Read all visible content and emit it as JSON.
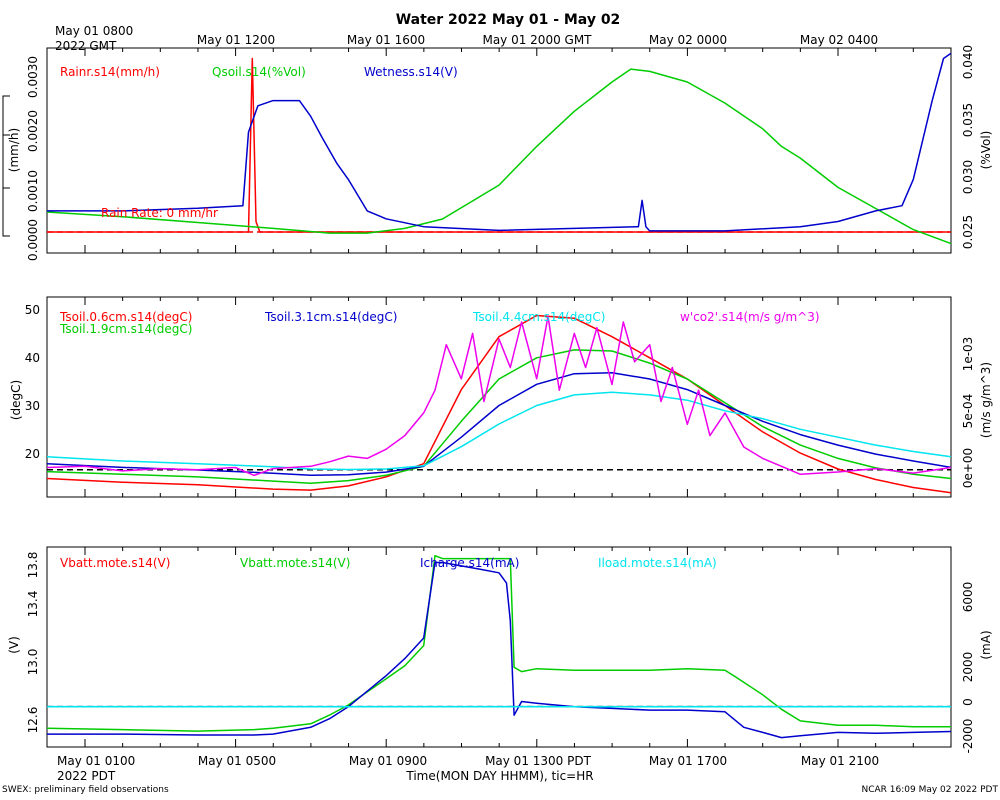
{
  "page": {
    "title": "Water 2022 May 01 - May 02",
    "top_axis": {
      "start_label_line1": "May 01 0800",
      "start_label_line2": "2022 GMT",
      "ticks": [
        "May 01 1200",
        "May 01 1600",
        "May 01 2000 GMT",
        "May 02 0000",
        "May 02 0400"
      ]
    },
    "bottom_axis": {
      "start_label_line1": "May 01 0100",
      "start_label_line2": "2022 PDT",
      "ticks": [
        "May 01 0500",
        "May 01 0900",
        "May 01 1300 PDT",
        "May 01 1700",
        "May 01 2100"
      ],
      "xlabel": "Time(MON DAY HHMM), tic=HR"
    },
    "footer_left": "SWEX: preliminary field observations",
    "footer_right": "NCAR 16:09 May 02 2022 PDT"
  },
  "chart_data": [
    {
      "type": "line",
      "panel": "water",
      "x_units": "hours since May 01 0000 PDT",
      "xlim": [
        0,
        24
      ],
      "left_axis": {
        "label": "(mm/h)",
        "ylim": [
          -0.0004,
          0.0035
        ],
        "ticks": [
          "0.0000",
          "0.0010",
          "0.0020",
          "0.0030"
        ]
      },
      "right_axis": {
        "label": "(%Vol)",
        "ylim": [
          0.0237,
          0.0412
        ],
        "ticks": [
          "0.025",
          "0.030",
          "0.035",
          "0.040"
        ]
      },
      "annotation": "Rain Rate: 0 mm/hr",
      "zero_line": {
        "value": 0,
        "color": "#ff0000"
      },
      "series": [
        {
          "name": "Rainr.s14(mm/h)",
          "color": "#ff0000",
          "axis": "left",
          "x": [
            0,
            5.35,
            5.45,
            5.55,
            5.65,
            24
          ],
          "y": [
            0,
            0,
            0.0033,
            0.0002,
            0,
            0
          ]
        },
        {
          "name": "Qsoil.s14(%Vol)",
          "color": "#00cc00",
          "axis": "right",
          "x": [
            0,
            2,
            4,
            6,
            7.5,
            8.5,
            9.5,
            10.5,
            12,
            13,
            14,
            15,
            15.5,
            16,
            17,
            18,
            19,
            19.5,
            20,
            21,
            22,
            23,
            24
          ],
          "y": [
            0.0272,
            0.0268,
            0.0263,
            0.0258,
            0.0254,
            0.0254,
            0.0258,
            0.0266,
            0.0295,
            0.0328,
            0.0358,
            0.0383,
            0.0394,
            0.0392,
            0.0383,
            0.0365,
            0.0343,
            0.0328,
            0.0318,
            0.0293,
            0.0275,
            0.0257,
            0.0245
          ]
        },
        {
          "name": "Wetness.s14(V)",
          "color": "#0000cc",
          "axis": "left",
          "x": [
            0,
            2,
            4,
            5.2,
            5.35,
            5.6,
            6,
            6.7,
            7,
            7.3,
            7.7,
            8,
            8.5,
            9,
            10,
            12,
            15.7,
            15.8,
            15.9,
            16,
            18,
            20,
            21,
            22,
            22.7,
            23,
            23.5,
            23.8,
            24
          ],
          "y": [
            0.0004,
            0.0004,
            0.00045,
            0.0005,
            0.0019,
            0.0024,
            0.0025,
            0.0025,
            0.0022,
            0.0018,
            0.0013,
            0.001,
            0.0004,
            0.00025,
            0.0001,
            3e-05,
            0.0001,
            0.0006,
            0.0001,
            2e-05,
            2e-05,
            0.0001,
            0.0002,
            0.0004,
            0.0005,
            0.001,
            0.0025,
            0.0033,
            0.0034
          ]
        }
      ]
    },
    {
      "type": "line",
      "panel": "soil temperature",
      "x_units": "hours since May 01 0000 PDT",
      "xlim": [
        0,
        24
      ],
      "left_axis": {
        "label": "(degC)",
        "ylim": [
          13.7,
          51.5
        ],
        "ticks": [
          "20",
          "30",
          "40",
          "50"
        ]
      },
      "right_axis": {
        "label": "(m/s g/m^3)",
        "ylim": [
          -0.00024,
          0.00152
        ],
        "ticks": [
          "0e+00",
          "5e-04",
          "1e-03"
        ]
      },
      "zero_line": {
        "value": 0,
        "axis": "right",
        "color": "#000000"
      },
      "series": [
        {
          "name": "Tsoil.0.6cm.s14(degC)",
          "color": "#ff0000",
          "axis": "left",
          "x": [
            0,
            2,
            4,
            6,
            7,
            8,
            9,
            10,
            11,
            12,
            13,
            14,
            15,
            16,
            17,
            18,
            19,
            20,
            21,
            22,
            23,
            24
          ],
          "y": [
            17.2,
            16.5,
            16,
            15.2,
            15,
            15.8,
            17.5,
            20,
            34,
            44,
            48,
            47.5,
            44,
            40,
            36,
            31,
            26,
            22,
            19,
            17,
            15.5,
            14.5
          ]
        },
        {
          "name": "Tsoil.1.9cm.s14(degC)",
          "color": "#00cc00",
          "axis": "left",
          "x": [
            0,
            2,
            4,
            6,
            7,
            8,
            9,
            10,
            11,
            12,
            13,
            14,
            15,
            16,
            17,
            18,
            19,
            20,
            21,
            22,
            23,
            24
          ],
          "y": [
            18.5,
            18,
            17.5,
            16.7,
            16.3,
            16.8,
            17.8,
            19.5,
            28,
            36,
            40,
            41.5,
            41.3,
            39,
            36,
            31.5,
            27,
            23.5,
            21,
            19.2,
            18,
            17.2
          ]
        },
        {
          "name": "Tsoil.3.1cm.s14(degC)",
          "color": "#0000cc",
          "axis": "left",
          "x": [
            0,
            2,
            4,
            6,
            7,
            8,
            9,
            10,
            11,
            12,
            13,
            14,
            15,
            16,
            17,
            18,
            19,
            20,
            21,
            22,
            23,
            24
          ],
          "y": [
            20,
            19.3,
            18.8,
            18.2,
            17.8,
            17.9,
            18.4,
            19.5,
            25,
            31,
            35,
            37,
            37.2,
            36,
            34,
            31,
            28,
            25.5,
            23.5,
            21.8,
            20.5,
            19.3
          ]
        },
        {
          "name": "Tsoil.4.4cm.s14(degC)",
          "color": "#00e5ee",
          "axis": "left",
          "x": [
            0,
            2,
            4,
            6,
            7,
            8,
            9,
            10,
            11,
            12,
            13,
            14,
            15,
            16,
            17,
            18,
            19,
            20,
            21,
            22,
            23,
            24
          ],
          "y": [
            21.3,
            20.5,
            20,
            19.4,
            19,
            18.9,
            19,
            19.6,
            23.2,
            27.5,
            31,
            33,
            33.5,
            33,
            32,
            30,
            28.5,
            26.5,
            25,
            23.5,
            22.3,
            21.3
          ]
        },
        {
          "name": "w'co2'.s14(m/s g/m^3)",
          "color": "#ee00ee",
          "axis": "right",
          "x": [
            0,
            1,
            2,
            3,
            4,
            5,
            5.5,
            6,
            7,
            7.5,
            8,
            8.5,
            9,
            9.5,
            10,
            10.3,
            10.6,
            11,
            11.3,
            11.6,
            12,
            12.3,
            12.6,
            13,
            13.3,
            13.6,
            14,
            14.3,
            14.6,
            15,
            15.3,
            15.6,
            16,
            16.3,
            16.6,
            17,
            17.3,
            17.6,
            18,
            18.5,
            19,
            19.5,
            20,
            21,
            22,
            23,
            24
          ],
          "y": [
            2e-05,
            3e-05,
            -1e-05,
            1e-05,
            0,
            2e-05,
            -5e-05,
            1e-05,
            3e-05,
            7e-05,
            0.00012,
            0.0001,
            0.00018,
            0.0003,
            0.0005,
            0.0007,
            0.0011,
            0.0008,
            0.0012,
            0.0006,
            0.00115,
            0.0009,
            0.0013,
            0.0008,
            0.00135,
            0.0007,
            0.0012,
            0.0009,
            0.00125,
            0.00075,
            0.0013,
            0.00095,
            0.0011,
            0.0006,
            0.0009,
            0.0004,
            0.0007,
            0.0003,
            0.0005,
            0.0002,
            0.0001,
            3e-05,
            -4e-05,
            -2e-05,
            1e-05,
            -3e-05,
            2e-05
          ]
        }
      ]
    },
    {
      "type": "line",
      "panel": "battery",
      "x_units": "hours since May 01 0000 PDT",
      "xlim": [
        0,
        24
      ],
      "left_axis": {
        "label": "(V)",
        "ylim": [
          12.5,
          13.88
        ],
        "ticks": [
          "12.6",
          "13.0",
          "13.4",
          "13.8"
        ]
      },
      "right_axis": {
        "label": "(mA)",
        "ylim": [
          -2350,
          9300
        ],
        "ticks": [
          "-2000",
          "0",
          "2000",
          "6000"
        ]
      },
      "zero_line": {
        "value": 0,
        "axis": "right",
        "color": "#000000",
        "overlay": "#00e5ee"
      },
      "series": [
        {
          "name": "Vbatt.mote.s14(V)",
          "color": "#ff0000",
          "axis": "left",
          "x": [],
          "y": []
        },
        {
          "name": "Vbatt.mote.s14(V)",
          "color": "#00cc00",
          "axis": "left",
          "x": [
            0,
            2,
            4,
            5.5,
            6,
            7,
            7.5,
            8,
            8.5,
            9,
            9.5,
            10,
            10.3,
            10.5,
            11,
            12,
            12.3,
            12.4,
            12.6,
            13,
            14,
            15,
            16,
            17,
            18,
            18.3,
            19,
            19.5,
            20,
            21,
            22,
            23,
            24
          ],
          "y": [
            12.63,
            12.62,
            12.61,
            12.62,
            12.63,
            12.66,
            12.72,
            12.79,
            12.88,
            12.97,
            13.06,
            13.2,
            13.82,
            13.8,
            13.8,
            13.8,
            13.8,
            13.05,
            13.02,
            13.04,
            13.03,
            13.03,
            13.03,
            13.04,
            13.03,
            12.98,
            12.86,
            12.76,
            12.68,
            12.65,
            12.65,
            12.64,
            12.64
          ]
        },
        {
          "name": "Icharge.s14(mA)",
          "color": "#0000cc",
          "axis": "right",
          "x": [
            0,
            2,
            4,
            5.5,
            6,
            7,
            7.5,
            8,
            8.5,
            9,
            9.5,
            10,
            10.3,
            10.5,
            11,
            11.5,
            12,
            12.2,
            12.3,
            12.4,
            12.6,
            13,
            14,
            15,
            16,
            17,
            18,
            18.5,
            19,
            19.5,
            20,
            21,
            22,
            23,
            24
          ],
          "y": [
            -1600,
            -1600,
            -1650,
            -1650,
            -1600,
            -1200,
            -700,
            0,
            900,
            1800,
            2800,
            4000,
            8400,
            8400,
            8200,
            8000,
            7800,
            7200,
            5000,
            -500,
            300,
            200,
            0,
            -100,
            -200,
            -200,
            -300,
            -1200,
            -1500,
            -1800,
            -1700,
            -1500,
            -1550,
            -1500,
            -1450
          ]
        },
        {
          "name": "Iload.mote.s14(mA)",
          "color": "#00e5ee",
          "axis": "right",
          "x": [
            0,
            24
          ],
          "y": [
            0,
            0
          ]
        }
      ]
    }
  ]
}
